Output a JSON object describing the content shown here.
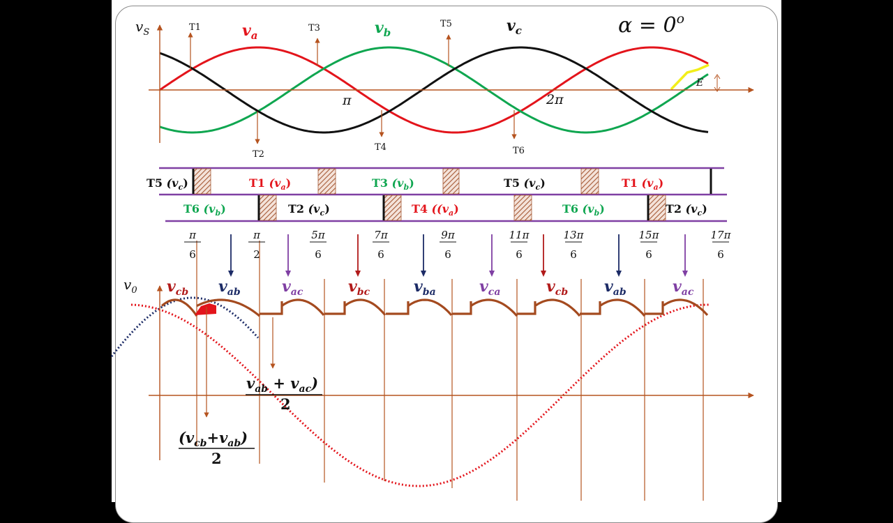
{
  "colors": {
    "red": "#e3141b",
    "green": "#0fa650",
    "black": "#111111",
    "axis": "#b5531f",
    "purple": "#7f3fa3",
    "navy": "#1c2b66",
    "darkred": "#b11a1a",
    "output": "#a44a1f",
    "yellow": "#f2ee1a",
    "hatch": "#a65a36"
  },
  "top": {
    "vs": "v",
    "vs_sub": "S",
    "va": "v",
    "va_sub": "a",
    "vb": "v",
    "vb_sub": "b",
    "vc": "v",
    "vc_sub": "c",
    "alpha": "α = 0",
    "alpha_sup": "o",
    "pi": "π",
    "two_pi": "2π",
    "E": "E",
    "T1": "T1",
    "T2": "T2",
    "T3": "T3",
    "T4": "T4",
    "T5": "T5",
    "T6": "T6"
  },
  "bands": {
    "upper": [
      {
        "name": "T5",
        "v": "(v",
        "s": "c",
        "close": ")",
        "color": "black"
      },
      {
        "name": "T1",
        "v": "(v",
        "s": "a",
        "close": ")",
        "color": "red"
      },
      {
        "name": "T3",
        "v": "(v",
        "s": "b",
        "close": ")",
        "color": "green"
      },
      {
        "name": "T5",
        "v": "(v",
        "s": "c",
        "close": ")",
        "color": "black"
      },
      {
        "name": "T1",
        "v": "(v",
        "s": "a",
        "close": ")",
        "color": "red"
      }
    ],
    "lower": [
      {
        "name": "T6",
        "v": "(v",
        "s": "b",
        "close": ")",
        "color": "green"
      },
      {
        "name": "T2",
        "v": "(v",
        "s": "c",
        "close": ")",
        "color": "black"
      },
      {
        "name": "T4",
        "v": "((v",
        "s": "a",
        "close": ")",
        "color": "red"
      },
      {
        "name": "T6",
        "v": "(v",
        "s": "b",
        "close": ")",
        "color": "green"
      },
      {
        "name": "T2",
        "v": "(v",
        "s": "c",
        "close": ")",
        "color": "black"
      }
    ]
  },
  "angles": [
    {
      "num": "π",
      "den": "6"
    },
    {
      "num": "π",
      "den": "2"
    },
    {
      "num": "5π",
      "den": "6"
    },
    {
      "num": "7π",
      "den": "6"
    },
    {
      "num": "9π",
      "den": "6"
    },
    {
      "num": "11π",
      "den": "6"
    },
    {
      "num": "13π",
      "den": "6"
    },
    {
      "num": "15π",
      "den": "6"
    },
    {
      "num": "17π",
      "den": "6"
    }
  ],
  "output": {
    "v0": "v",
    "v0_sub": "0",
    "labels": [
      {
        "v": "v",
        "s": "cb"
      },
      {
        "v": "v",
        "s": "ab"
      },
      {
        "v": "v",
        "s": "ac"
      },
      {
        "v": "v",
        "s": "bc"
      },
      {
        "v": "v",
        "s": "ba"
      },
      {
        "v": "v",
        "s": "ca"
      },
      {
        "v": "v",
        "s": "cb"
      },
      {
        "v": "v",
        "s": "ab"
      },
      {
        "v": "v",
        "s": "ac"
      }
    ],
    "frac1_num": "v",
    "frac1_s1": "ab",
    "frac1_plus": " + v",
    "frac1_s2": "ac",
    "frac1_close": ")",
    "frac1_den": "2",
    "frac2_open": "(v",
    "frac2_s1": "cb",
    "frac2_plus": "+v",
    "frac2_s2": "ab",
    "frac2_close": ")",
    "frac2_den": "2"
  }
}
